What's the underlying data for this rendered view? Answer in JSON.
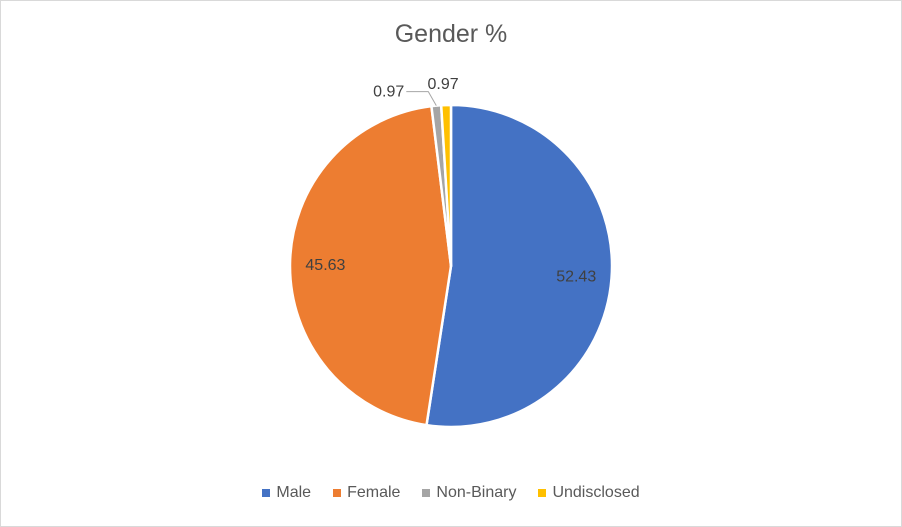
{
  "chart_data": {
    "type": "pie",
    "title": "Gender %",
    "categories": [
      "Male",
      "Female",
      "Non-Binary",
      "Undisclosed"
    ],
    "values": [
      52.43,
      45.63,
      0.97,
      0.97
    ],
    "colors": [
      "#4472c4",
      "#ed7d31",
      "#a5a5a5",
      "#ffc000"
    ],
    "data_labels": [
      "52.43",
      "45.63",
      "0.97",
      "0.97"
    ],
    "legend_position": "bottom"
  }
}
